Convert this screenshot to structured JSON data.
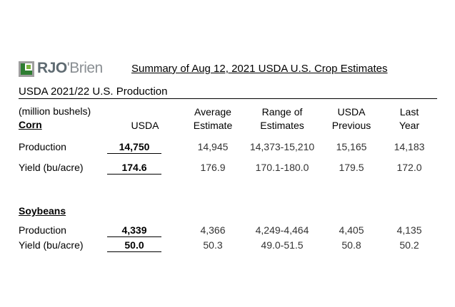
{
  "logo": {
    "text_prefix": "RJO",
    "text_suffix": "'Brien",
    "brand_color": "#2e7d32"
  },
  "title": "Summary of Aug 12, 2021 USDA U.S. Crop Estimates",
  "subtitle": "USDA 2021/22 U.S. Production",
  "units_label": "(million bushels)",
  "columns": {
    "usda": "USDA",
    "avg_line1": "Average",
    "avg_line2": "Estimate",
    "range_line1": "Range of",
    "range_line2": "Estimates",
    "prev_line1": "USDA",
    "prev_line2": "Previous",
    "last_line1": "Last",
    "last_line2": "Year"
  },
  "corn": {
    "heading": "Corn",
    "rows": [
      {
        "label": "Production",
        "usda": "14,750",
        "avg": "14,945",
        "range": "14,373-15,210",
        "prev": "15,165",
        "last": "14,183"
      },
      {
        "label": "Yield (bu/acre)",
        "usda": "174.6",
        "avg": "176.9",
        "range": "170.1-180.0",
        "prev": "179.5",
        "last": "172.0"
      }
    ]
  },
  "soybeans": {
    "heading": "Soybeans",
    "rows": [
      {
        "label": "Production",
        "usda": "4,339",
        "avg": "4,366",
        "range": "4,249-4,464",
        "prev": "4,405",
        "last": "4,135"
      },
      {
        "label": "Yield (bu/acre)",
        "usda": "50.0",
        "avg": "50.3",
        "range": "49.0-51.5",
        "prev": "50.8",
        "last": "50.2"
      }
    ]
  }
}
